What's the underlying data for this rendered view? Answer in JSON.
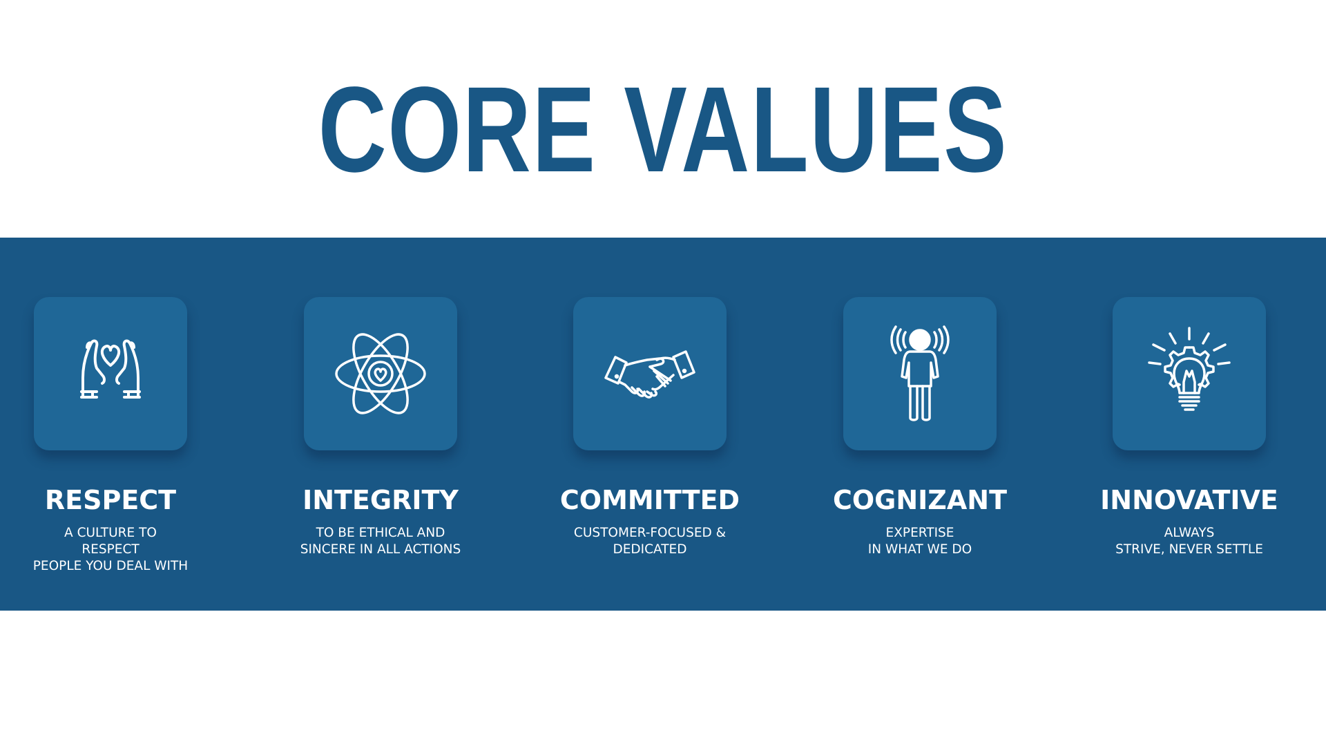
{
  "heading": "CORE VALUES",
  "colors": {
    "brand_blue": "#195785",
    "tile_blue": "#1f6797",
    "text_white": "#ffffff"
  },
  "values": [
    {
      "title": "RESPECT",
      "icon": "hands-heart-icon",
      "lines": [
        "A CULTURE TO",
        "RESPECT",
        "PEOPLE YOU DEAL WITH"
      ]
    },
    {
      "title": "INTEGRITY",
      "icon": "atom-heart-icon",
      "lines": [
        "TO BE ETHICAL AND",
        "SINCERE IN ALL ACTIONS"
      ]
    },
    {
      "title": "COMMITTED",
      "icon": "handshake-icon",
      "lines": [
        "CUSTOMER-FOCUSED &",
        "DEDICATED"
      ]
    },
    {
      "title": "COGNIZANT",
      "icon": "person-signal-icon",
      "lines": [
        "EXPERTISE",
        "IN WHAT WE DO"
      ]
    },
    {
      "title": "INNOVATIVE",
      "icon": "lightbulb-gear-icon",
      "lines": [
        "ALWAYS",
        "STRIVE, NEVER SETTLE"
      ]
    }
  ]
}
